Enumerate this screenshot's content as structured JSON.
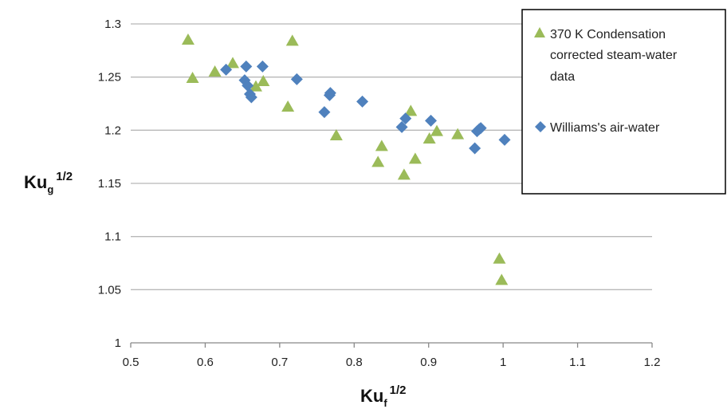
{
  "chart_data": {
    "type": "scatter",
    "xlabel": "Ku",
    "xlabel_sub": "f",
    "xlabel_sup": "1/2",
    "ylabel": "Ku",
    "ylabel_sub": "g",
    "ylabel_sup": "1/2",
    "xlim": [
      0.5,
      1.2
    ],
    "ylim": [
      1,
      1.3
    ],
    "xticks": [
      "0.5",
      "0.6",
      "0.7",
      "0.8",
      "0.9",
      "1",
      "1.1",
      "1.2"
    ],
    "yticks": [
      "1",
      "1.05",
      "1.1",
      "1.15",
      "1.2",
      "1.25",
      "1.3"
    ],
    "grid": "horizontal",
    "legend_position": "top-right",
    "series": [
      {
        "name": "370 K Condensation corrected steam-water data",
        "legend_lines": [
          "370 K Condensation",
          "corrected steam-water",
          "data"
        ],
        "marker": "triangle",
        "color": "#9BBB59",
        "points": [
          [
            0.577,
            1.285
          ],
          [
            0.583,
            1.249
          ],
          [
            0.613,
            1.255
          ],
          [
            0.637,
            1.263
          ],
          [
            0.668,
            1.241
          ],
          [
            0.678,
            1.246
          ],
          [
            0.711,
            1.222
          ],
          [
            0.717,
            1.284
          ],
          [
            0.776,
            1.195
          ],
          [
            0.832,
            1.17
          ],
          [
            0.837,
            1.185
          ],
          [
            0.867,
            1.158
          ],
          [
            0.876,
            1.218
          ],
          [
            0.882,
            1.173
          ],
          [
            0.901,
            1.192
          ],
          [
            0.911,
            1.199
          ],
          [
            0.939,
            1.196
          ],
          [
            0.995,
            1.079
          ],
          [
            0.998,
            1.059
          ]
        ]
      },
      {
        "name": "Williams's air-water",
        "legend_lines": [
          "Williams's air-water"
        ],
        "marker": "diamond",
        "color": "#4F81BD",
        "points": [
          [
            0.628,
            1.257
          ],
          [
            0.653,
            1.247
          ],
          [
            0.655,
            1.26
          ],
          [
            0.657,
            1.242
          ],
          [
            0.66,
            1.234
          ],
          [
            0.662,
            1.231
          ],
          [
            0.677,
            1.26
          ],
          [
            0.723,
            1.248
          ],
          [
            0.76,
            1.217
          ],
          [
            0.767,
            1.233
          ],
          [
            0.768,
            1.235
          ],
          [
            0.811,
            1.227
          ],
          [
            0.864,
            1.203
          ],
          [
            0.869,
            1.211
          ],
          [
            0.903,
            1.209
          ],
          [
            0.962,
            1.183
          ],
          [
            0.965,
            1.199
          ],
          [
            0.968,
            1.201
          ],
          [
            0.97,
            1.202
          ],
          [
            1.002,
            1.191
          ]
        ]
      }
    ]
  }
}
